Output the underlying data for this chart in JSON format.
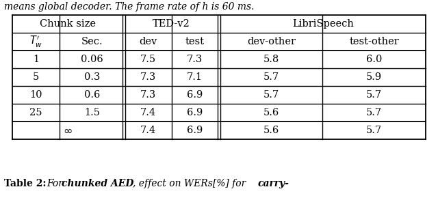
{
  "title_top": "means global decoder. The frame rate of h is 60 ms.",
  "caption_plain": "Table 2: ",
  "caption_italic": " For ",
  "caption_bold_italic": "chunked AED",
  "caption_rest": ", effect on WERs[%] for ",
  "caption_bold2": "carry-",
  "header_row1_labels": [
    "Chunk size",
    "TED-v2",
    "LibriSpeech"
  ],
  "header_row2_labels": [
    "Sec.",
    "dev",
    "test",
    "dev-other",
    "test-other"
  ],
  "data_rows": [
    [
      "1",
      "0.06",
      "7.5",
      "7.3",
      "5.8",
      "6.0"
    ],
    [
      "5",
      "0.3",
      "7.3",
      "7.1",
      "5.7",
      "5.9"
    ],
    [
      "10",
      "0.6",
      "7.3",
      "6.9",
      "5.7",
      "5.7"
    ],
    [
      "25",
      "1.5",
      "7.4",
      "6.9",
      "5.6",
      "5.7"
    ]
  ],
  "last_row_vals": [
    "7.4",
    "6.9",
    "5.6",
    "5.7"
  ],
  "background_color": "#ffffff",
  "line_color": "#000000",
  "text_color": "#000000",
  "font_size": 10.5
}
